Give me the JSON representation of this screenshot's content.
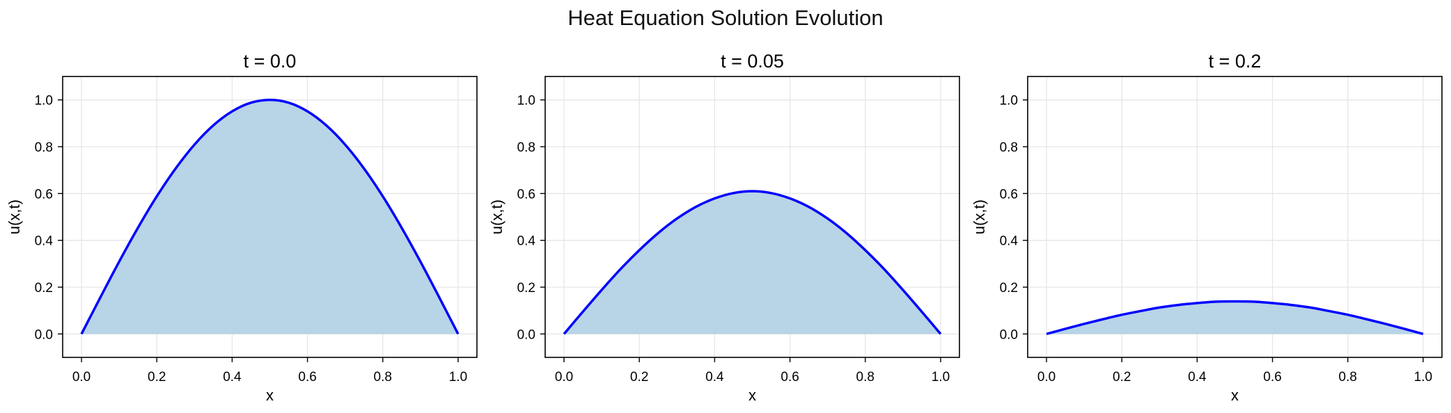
{
  "figure": {
    "title": "Heat Equation Solution Evolution"
  },
  "colors": {
    "line": "#0000ff",
    "fill": "#b8d4e7",
    "grid": "#e6e6e6",
    "axes": "#000000"
  },
  "chart_data": [
    {
      "type": "area",
      "title": "t = 0.0",
      "xlabel": "x",
      "ylabel": "u(x,t)",
      "xlim": [
        -0.05,
        1.05
      ],
      "ylim": [
        -0.1,
        1.1
      ],
      "xticks": [
        "0.0",
        "0.2",
        "0.4",
        "0.6",
        "0.8",
        "1.0"
      ],
      "yticks": [
        "0.0",
        "0.2",
        "0.4",
        "0.6",
        "0.8",
        "1.0"
      ],
      "grid": true,
      "x": [
        0.0,
        0.05,
        0.1,
        0.15,
        0.2,
        0.25,
        0.3,
        0.35,
        0.4,
        0.45,
        0.5,
        0.55,
        0.6,
        0.65,
        0.7,
        0.75,
        0.8,
        0.85,
        0.9,
        0.95,
        1.0
      ],
      "y": [
        0.0,
        0.156,
        0.309,
        0.454,
        0.588,
        0.707,
        0.809,
        0.891,
        0.951,
        0.988,
        1.0,
        0.988,
        0.951,
        0.891,
        0.809,
        0.707,
        0.588,
        0.454,
        0.309,
        0.156,
        0.0
      ]
    },
    {
      "type": "area",
      "title": "t = 0.05",
      "xlabel": "x",
      "ylabel": "u(x,t)",
      "xlim": [
        -0.05,
        1.05
      ],
      "ylim": [
        -0.1,
        1.1
      ],
      "xticks": [
        "0.0",
        "0.2",
        "0.4",
        "0.6",
        "0.8",
        "1.0"
      ],
      "yticks": [
        "0.0",
        "0.2",
        "0.4",
        "0.6",
        "0.8",
        "1.0"
      ],
      "grid": true,
      "x": [
        0.0,
        0.05,
        0.1,
        0.15,
        0.2,
        0.25,
        0.3,
        0.35,
        0.4,
        0.45,
        0.5,
        0.55,
        0.6,
        0.65,
        0.7,
        0.75,
        0.8,
        0.85,
        0.9,
        0.95,
        1.0
      ],
      "y": [
        0.0,
        0.095,
        0.188,
        0.277,
        0.358,
        0.431,
        0.493,
        0.543,
        0.579,
        0.602,
        0.61,
        0.602,
        0.579,
        0.543,
        0.493,
        0.431,
        0.358,
        0.277,
        0.188,
        0.095,
        0.0
      ]
    },
    {
      "type": "area",
      "title": "t = 0.2",
      "xlabel": "x",
      "ylabel": "u(x,t)",
      "xlim": [
        -0.05,
        1.05
      ],
      "ylim": [
        -0.1,
        1.1
      ],
      "xticks": [
        "0.0",
        "0.2",
        "0.4",
        "0.6",
        "0.8",
        "1.0"
      ],
      "yticks": [
        "0.0",
        "0.2",
        "0.4",
        "0.6",
        "0.8",
        "1.0"
      ],
      "grid": true,
      "x": [
        0.0,
        0.05,
        0.1,
        0.15,
        0.2,
        0.25,
        0.3,
        0.35,
        0.4,
        0.45,
        0.5,
        0.55,
        0.6,
        0.65,
        0.7,
        0.75,
        0.8,
        0.85,
        0.9,
        0.95,
        1.0
      ],
      "y": [
        0.0,
        0.022,
        0.043,
        0.063,
        0.082,
        0.098,
        0.113,
        0.124,
        0.132,
        0.138,
        0.139,
        0.138,
        0.132,
        0.124,
        0.113,
        0.098,
        0.082,
        0.063,
        0.043,
        0.022,
        0.0
      ]
    }
  ]
}
